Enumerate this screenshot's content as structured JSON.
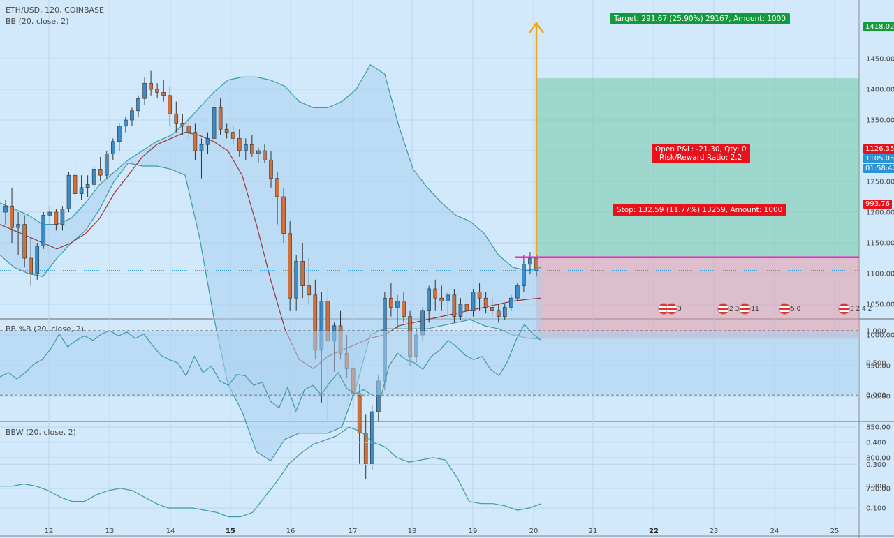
{
  "header": {
    "main_title": "ETH/USD, 120, COINBASE",
    "bb_title": "BB (20, close, 2)",
    "pctb_title": "BB %B (20, close, 2)",
    "bbw_title": "BBW (20, close, 2)"
  },
  "position": {
    "target_label": "Target: 291.67 (25.90%) 29167, Amount: 1000",
    "stop_label": "Stop: 132.59 (11.77%) 13259, Amount: 1000",
    "pnl_label": "Open P&L: -21.30, Qty: 0",
    "rr_label": "Risk/Reward Ratio: 2.2",
    "entry": 1126.35,
    "target": 1418.02,
    "stop": 993.76
  },
  "price_axis_tags": {
    "target": "1418.02",
    "entry": "1126.35",
    "last": "1105.05",
    "countdown": "01:58:42",
    "stop": "993.76"
  },
  "events": [
    "3",
    "2 3",
    "11",
    "5 0",
    "3 2 4 2"
  ],
  "colors": {
    "up": "#3b8cc9",
    "down": "#d0703b",
    "band_line": "#3a9aa8",
    "basis": "#9a3434",
    "target_zone": "#5fc490",
    "stop_zone": "#e49aa6",
    "entry_line": "#ff1ec7",
    "arrow": "#f0a51e",
    "target_tag": "#139b3b",
    "stop_tag": "#e8111c"
  },
  "chart_data": [
    {
      "type": "candlestick",
      "title": "ETH/USD, 120, COINBASE",
      "ylim": [
        730,
        1470
      ],
      "y_ticks": [
        1450,
        1400,
        1350,
        1300,
        1250,
        1200,
        1150,
        1100,
        1050,
        1000,
        950,
        900,
        850,
        800,
        750
      ],
      "x_ticks": [
        "12",
        "13",
        "14",
        "15",
        "16",
        "17",
        "18",
        "19",
        "20",
        "21",
        "22",
        "23",
        "24",
        "25"
      ],
      "x_ticks_bold": [
        "15",
        "22"
      ],
      "candles_ohlc": [
        [
          1200,
          1220,
          1180,
          1210
        ],
        [
          1210,
          1240,
          1150,
          1175
        ],
        [
          1175,
          1200,
          1130,
          1180
        ],
        [
          1180,
          1195,
          1110,
          1125
        ],
        [
          1125,
          1160,
          1080,
          1100
        ],
        [
          1100,
          1150,
          1090,
          1145
        ],
        [
          1145,
          1200,
          1140,
          1195
        ],
        [
          1195,
          1210,
          1180,
          1200
        ],
        [
          1200,
          1205,
          1170,
          1180
        ],
        [
          1180,
          1210,
          1170,
          1205
        ],
        [
          1205,
          1265,
          1200,
          1260
        ],
        [
          1260,
          1290,
          1220,
          1230
        ],
        [
          1230,
          1260,
          1220,
          1240
        ],
        [
          1240,
          1260,
          1225,
          1245
        ],
        [
          1245,
          1275,
          1240,
          1270
        ],
        [
          1270,
          1290,
          1250,
          1260
        ],
        [
          1260,
          1300,
          1255,
          1295
        ],
        [
          1295,
          1320,
          1285,
          1315
        ],
        [
          1315,
          1345,
          1300,
          1340
        ],
        [
          1340,
          1355,
          1330,
          1350
        ],
        [
          1350,
          1370,
          1340,
          1365
        ],
        [
          1365,
          1390,
          1355,
          1385
        ],
        [
          1385,
          1420,
          1375,
          1410
        ],
        [
          1410,
          1430,
          1390,
          1400
        ],
        [
          1400,
          1410,
          1385,
          1395
        ],
        [
          1395,
          1415,
          1380,
          1390
        ],
        [
          1390,
          1405,
          1340,
          1360
        ],
        [
          1360,
          1380,
          1330,
          1345
        ],
        [
          1345,
          1360,
          1325,
          1340
        ],
        [
          1340,
          1355,
          1320,
          1330
        ],
        [
          1330,
          1345,
          1285,
          1300
        ],
        [
          1300,
          1320,
          1255,
          1310
        ],
        [
          1310,
          1330,
          1295,
          1320
        ],
        [
          1320,
          1380,
          1315,
          1370
        ],
        [
          1370,
          1385,
          1325,
          1335
        ],
        [
          1335,
          1345,
          1320,
          1330
        ],
        [
          1330,
          1340,
          1310,
          1320
        ],
        [
          1320,
          1335,
          1290,
          1300
        ],
        [
          1300,
          1320,
          1285,
          1310
        ],
        [
          1310,
          1325,
          1290,
          1295
        ],
        [
          1295,
          1305,
          1280,
          1300
        ],
        [
          1300,
          1310,
          1280,
          1285
        ],
        [
          1285,
          1300,
          1240,
          1255
        ],
        [
          1255,
          1265,
          1180,
          1225
        ],
        [
          1225,
          1240,
          1150,
          1165
        ],
        [
          1165,
          1185,
          1040,
          1060
        ],
        [
          1060,
          1130,
          1040,
          1120
        ],
        [
          1120,
          1150,
          1060,
          1080
        ],
        [
          1080,
          1125,
          1050,
          1065
        ],
        [
          1065,
          1090,
          960,
          975
        ],
        [
          975,
          1070,
          890,
          1055
        ],
        [
          1055,
          1075,
          860,
          990
        ],
        [
          990,
          1020,
          940,
          1015
        ],
        [
          1015,
          1040,
          960,
          970
        ],
        [
          970,
          1000,
          930,
          945
        ],
        [
          945,
          960,
          880,
          905
        ],
        [
          905,
          920,
          790,
          840
        ],
        [
          840,
          870,
          765,
          790
        ],
        [
          790,
          885,
          780,
          875
        ],
        [
          875,
          935,
          860,
          925
        ],
        [
          925,
          1070,
          910,
          1060
        ],
        [
          1060,
          1085,
          1030,
          1045
        ],
        [
          1045,
          1065,
          1010,
          1055
        ],
        [
          1055,
          1070,
          1020,
          1030
        ],
        [
          1030,
          1040,
          950,
          965
        ],
        [
          965,
          1010,
          955,
          1000
        ],
        [
          1000,
          1045,
          990,
          1040
        ],
        [
          1040,
          1080,
          1020,
          1075
        ],
        [
          1075,
          1090,
          1040,
          1060
        ],
        [
          1060,
          1080,
          1040,
          1055
        ],
        [
          1055,
          1070,
          1030,
          1065
        ],
        [
          1065,
          1075,
          1020,
          1030
        ],
        [
          1030,
          1060,
          1025,
          1050
        ],
        [
          1050,
          1060,
          1010,
          1040
        ],
        [
          1040,
          1075,
          1030,
          1070
        ],
        [
          1070,
          1085,
          1040,
          1060
        ],
        [
          1060,
          1070,
          1035,
          1045
        ],
        [
          1045,
          1060,
          1030,
          1040
        ],
        [
          1040,
          1050,
          1020,
          1030
        ],
        [
          1030,
          1050,
          1025,
          1045
        ],
        [
          1045,
          1065,
          1040,
          1060
        ],
        [
          1060,
          1085,
          1055,
          1080
        ],
        [
          1080,
          1130,
          1070,
          1115
        ],
        [
          1115,
          1135,
          1100,
          1125
        ],
        [
          1125,
          1130,
          1095,
          1105
        ]
      ],
      "bb_upper": [
        1215,
        1205,
        1195,
        1180,
        1180,
        1190,
        1215,
        1245,
        1265,
        1285,
        1300,
        1315,
        1325,
        1345,
        1370,
        1395,
        1415,
        1420,
        1420,
        1415,
        1405,
        1380,
        1370,
        1370,
        1380,
        1400,
        1440,
        1425,
        1340,
        1270,
        1240,
        1215,
        1195,
        1185,
        1165,
        1130,
        1110,
        1105,
        1110
      ],
      "bb_lower": [
        1130,
        1110,
        1100,
        1095,
        1125,
        1150,
        1170,
        1205,
        1250,
        1280,
        1275,
        1275,
        1270,
        1260,
        1160,
        1030,
        920,
        875,
        810,
        795,
        830,
        840,
        840,
        840,
        850,
        915,
        1000,
        1010,
        1010,
        1010,
        1010,
        1015,
        1020,
        1025,
        1015,
        1010,
        1000,
        995,
        993
      ],
      "bb_basis": [
        1180,
        1170,
        1160,
        1150,
        1140,
        1150,
        1165,
        1190,
        1230,
        1260,
        1290,
        1310,
        1320,
        1330,
        1325,
        1315,
        1300,
        1260,
        1180,
        1090,
        1010,
        960,
        945,
        965,
        975,
        985,
        995,
        1000,
        1015,
        1020,
        1025,
        1030,
        1035,
        1040,
        1045,
        1050,
        1055,
        1058,
        1060
      ]
    },
    {
      "type": "line",
      "title": "BB %B (20, close, 2)",
      "ylim": [
        -0.35,
        1.25
      ],
      "y_ticks": [
        1.0,
        0.5,
        0.0
      ],
      "values": [
        0.28,
        0.35,
        0.25,
        0.35,
        0.48,
        0.55,
        0.72,
        0.95,
        0.75,
        0.85,
        0.92,
        0.85,
        0.95,
        1.0,
        0.92,
        0.98,
        0.88,
        0.95,
        0.78,
        0.62,
        0.55,
        0.5,
        0.3,
        0.6,
        0.35,
        0.45,
        0.22,
        0.15,
        0.32,
        0.3,
        0.15,
        0.2,
        -0.1,
        -0.2,
        0.12,
        -0.25,
        0.08,
        0.15,
        0.0,
        0.2,
        0.35,
        0.1,
        0.02,
        0.08,
        0.0,
        -0.05,
        0.45,
        0.65,
        0.55,
        0.5,
        0.4,
        0.6,
        0.7,
        0.85,
        0.75,
        0.62,
        0.55,
        0.6,
        0.4,
        0.3,
        0.52,
        0.85,
        1.1,
        0.95,
        0.85
      ]
    },
    {
      "type": "line",
      "title": "BBW (20, close, 2)",
      "ylim": [
        0.05,
        0.45
      ],
      "y_ticks": [
        0.4,
        0.3,
        0.2,
        0.1
      ],
      "values": [
        0.2,
        0.2,
        0.21,
        0.2,
        0.18,
        0.15,
        0.13,
        0.13,
        0.16,
        0.18,
        0.19,
        0.18,
        0.15,
        0.12,
        0.1,
        0.1,
        0.1,
        0.09,
        0.08,
        0.06,
        0.06,
        0.08,
        0.15,
        0.22,
        0.3,
        0.35,
        0.39,
        0.41,
        0.43,
        0.47,
        0.45,
        0.4,
        0.38,
        0.33,
        0.31,
        0.32,
        0.33,
        0.32,
        0.24,
        0.13,
        0.12,
        0.12,
        0.11,
        0.09,
        0.1,
        0.12
      ]
    }
  ]
}
